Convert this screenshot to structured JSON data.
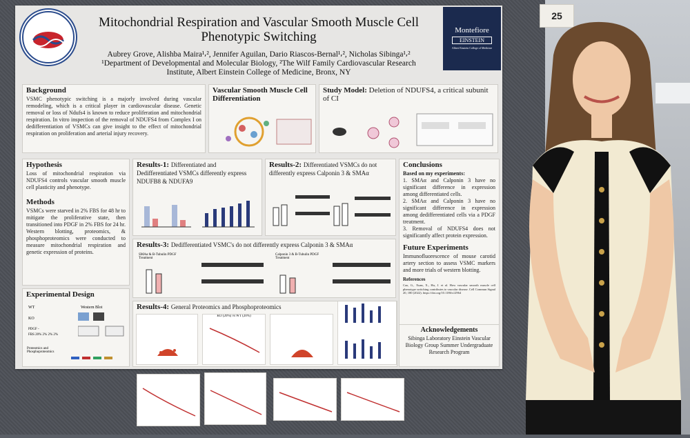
{
  "booth_number": "25",
  "logo_text": "EINSTEIN VASCULAR BIOLOGY GROUP",
  "logo_inner": "LIFE-IS-FLOW",
  "institution_logo": {
    "line1": "Montefiore",
    "line2": "EINSTEIN",
    "line3": "Albert Einstein College of Medicine"
  },
  "poster": {
    "title": "Mitochondrial Respiration and Vascular Smooth Muscle Cell Phenotypic Switching",
    "authors": "Aubrey Grove, Alishba Maira¹⸴², Jennifer Aguilan, Dario Riascos-Bernal¹⸴², Nicholas Sibinga¹⸴²",
    "affiliations": "¹Department of Developmental and Molecular Biology, ²The Wilf Family Cardiovascular Research Institute, Albert Einstein College of Medicine, Bronx, NY",
    "background": {
      "heading": "Background",
      "text": "VSMC phenotypic switching is a majorly involved during vascular remodeling, which is a critical player in cardiovascular disease. Genetic removal or loss of Ndufs4 is known to reduce proliferation and mitochondrial respiration. In vitro inspection of the removal of NDUFS4 from Complex I on dedifferentiation of VSMCs can give insight to the effect of mitochondrial respiration on proliferation and arterial injury recovery."
    },
    "vsm_diff": {
      "heading": "Vascular Smooth Muscle Cell Differentiation"
    },
    "study_model": {
      "heading": "Study Model:",
      "subheading": "Deletion of NDUFS4, a critical subunit of CI"
    },
    "hypothesis": {
      "heading": "Hypothesis",
      "text": "Loss of mitochondrial respiration via NDUFS4 controls vascular smooth muscle cell plasticity and phenotype."
    },
    "methods": {
      "heading": "Methods",
      "text": "VSMCs were starved in 2% FBS for 48 hr to mitigate the proliferative state, then transitioned into PDGF in 2% FBS for 24 hr. Western blotting, proteomics, & phosphoproteomics were conducted to measure mitochondrial respiration and genetic expression of proteins."
    },
    "experimental_design": {
      "heading": "Experimental Design",
      "western_blot": "Western Blot",
      "proteomics": "Proteomics and Phosphoproteomics",
      "wt": "WT",
      "ko": "KO",
      "pdgf": "PDGF -",
      "fbs": "FBS 20% 2% 2% 2%"
    },
    "results1": {
      "heading": "Results-1:",
      "text": "Differentiated and Dedifferentiated VSMCs differently express NDUFB8 & NDUFA9"
    },
    "results2": {
      "heading": "Results-2:",
      "text": "Differentiated VSMCs do not differently express Calponin 3 & SMAα"
    },
    "results3": {
      "heading": "Results-3:",
      "text": "Dedifferentiated VSMC's do not differently express Calponin 3 & SMAα"
    },
    "results4": {
      "heading": "Results-4:",
      "text": "General Proteomics and Phosphoproteomics"
    },
    "conclusions": {
      "heading": "Conclusions",
      "based": "Based on my experiments:",
      "items": [
        "1. SMAα and Calponin 3 have no significant difference in expression among differentiated cells.",
        "2. SMAα and Calponin 3 have no significant difference in expression among dedifferentiated cells via a PDGF treatment.",
        "3. Removal of NDUFS4 does not significantly affect protein expression."
      ]
    },
    "future": {
      "heading": "Future Experiments",
      "text": "Immunofluorescence of mouse carotid artery section to assess VSMC markers and more trials of western blotting."
    },
    "references": {
      "heading": "References",
      "text": "Cao, G., Xuan, X., Hu, J. et al. How vascular smooth muscle cell phenotype switching contributes to vascular disease. Cell Commun Signal 20, 180 (2022). https://doi.org/10.1186/s12964"
    },
    "acknowledgements": {
      "heading": "Acknowledgements",
      "text": "Sibinga Laboratory Einstein Vascular Biology Group Summer Undergraduate Research Program"
    },
    "fig_labels": {
      "ko_vs_wt": "KO (20%) vs WT (20%)",
      "calponin_pdgf": "Calponin 3 & B-Tubulin PDGF Treatment",
      "sma_pdgf": "SMAα & B-Tubulin PDGF Treatment"
    }
  },
  "colors": {
    "poster_bg": "#e7e6e4",
    "panel_bg": "#f6f5f2",
    "navy": "#1b2a4e",
    "bar": "#2a3a7a",
    "volcano": "#d0442a"
  }
}
